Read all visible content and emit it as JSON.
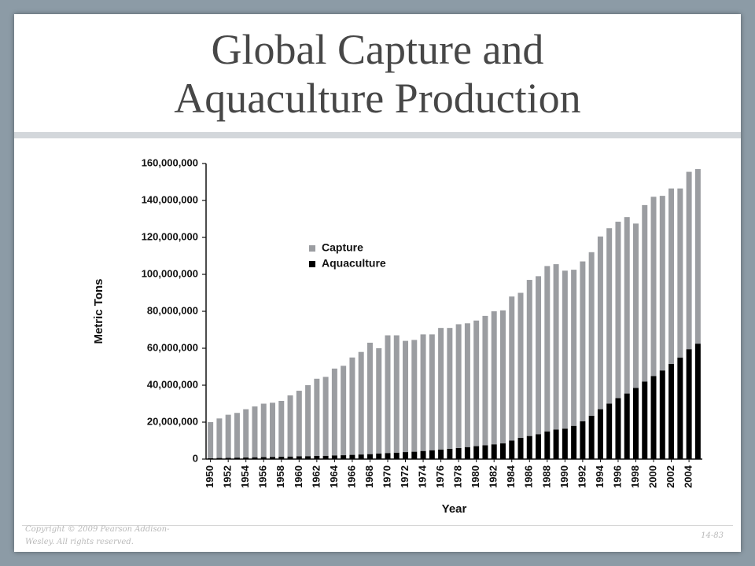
{
  "chart_data": {
    "type": "stacked-bar",
    "title": "Global Capture and Aquaculture Production",
    "x_label": "Year",
    "y_label": "Metric Tons",
    "categories": [
      "1950",
      null,
      "1952",
      null,
      "1954",
      null,
      "1956",
      null,
      "1958",
      null,
      "1960",
      null,
      "1962",
      null,
      "1964",
      null,
      "1966",
      null,
      "1968",
      null,
      "1970",
      null,
      "1972",
      null,
      "1974",
      null,
      "1976",
      null,
      "1978",
      null,
      "1980",
      null,
      "1982",
      null,
      "1984",
      null,
      "1986",
      null,
      "1988",
      null,
      "1990",
      null,
      "1992",
      null,
      "1994",
      null,
      "1996",
      null,
      "1998",
      null,
      "2000",
      null,
      "2002",
      null,
      "2004",
      null
    ],
    "series": [
      {
        "name": "Aquaculture",
        "color": "#000000",
        "values": [
          500000,
          600000,
          700000,
          800000,
          900000,
          1000000,
          1100000,
          1200000,
          1300000,
          1400000,
          1500000,
          1600000,
          1700000,
          1800000,
          2000000,
          2100000,
          2300000,
          2500000,
          2700000,
          3000000,
          3300000,
          3500000,
          3800000,
          4000000,
          4400000,
          4800000,
          5200000,
          5600000,
          6000000,
          6500000,
          7000000,
          7500000,
          8000000,
          8500000,
          10000000,
          11500000,
          12500000,
          13500000,
          15000000,
          16000000,
          16500000,
          18000000,
          20500000,
          23500000,
          27000000,
          30000000,
          33000000,
          35500000,
          38500000,
          42000000,
          45000000,
          48000000,
          51500000,
          55000000,
          59500000,
          62500000
        ]
      },
      {
        "name": "Capture",
        "color": "#9b9da1",
        "values": [
          19500000,
          21400000,
          23300000,
          24200000,
          26100000,
          27500000,
          28900000,
          29300000,
          30200000,
          33100000,
          35500000,
          38400000,
          41800000,
          42700000,
          47000000,
          48400000,
          52700000,
          55500000,
          60300000,
          57000000,
          63700000,
          63500000,
          60200000,
          60500000,
          63100000,
          62700000,
          65800000,
          65400000,
          67000000,
          67000000,
          68000000,
          70000000,
          72000000,
          72000000,
          78000000,
          78500000,
          84500000,
          85500000,
          89500000,
          89500000,
          85500000,
          84500000,
          86500000,
          88500000,
          93500000,
          95000000,
          95500000,
          95500000,
          89000000,
          95500000,
          97000000,
          94500000,
          95000000,
          91500000,
          96000000,
          94500000
        ]
      }
    ],
    "ylim": [
      0,
      160000000
    ],
    "yticks": [
      0,
      {
        "value": 20000000,
        "label": "20,000,000"
      },
      {
        "value": 40000000,
        "label": "40,000,000"
      },
      {
        "value": 60000000,
        "label": "60,000,000"
      },
      {
        "value": 80000000,
        "label": "80,000,000"
      },
      {
        "value": 100000000,
        "label": "100,000,000"
      },
      {
        "value": 120000000,
        "label": "120,000,000"
      },
      {
        "value": 140000000,
        "label": "140,000,000"
      },
      {
        "value": 160000000,
        "label": "160,000,000"
      }
    ],
    "grid": false,
    "legend": "upper left"
  },
  "footer": {
    "copyright": "Copyright © 2009 Pearson Addison-Wesley. All rights reserved.",
    "page": "14-83"
  }
}
